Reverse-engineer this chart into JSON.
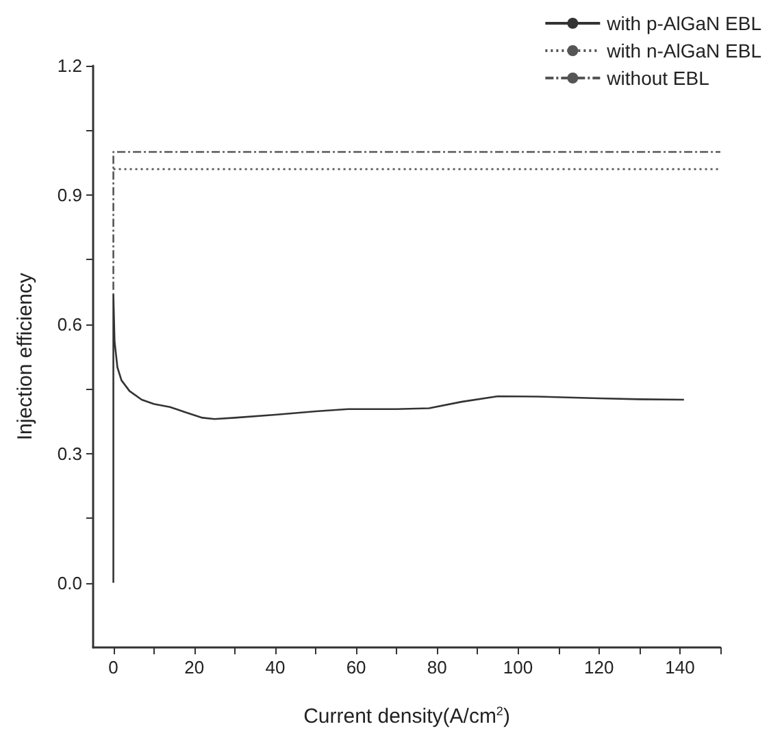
{
  "chart_data": {
    "type": "line",
    "xlabel": "Current density(A/cm$^{2}$)",
    "ylabel": "Injection efficiency",
    "xlim": [
      -5,
      150
    ],
    "xticks": [
      0,
      {
        "value": 10,
        "label": null
      },
      20,
      {
        "value": 30,
        "label": null
      },
      40,
      {
        "value": 50,
        "label": null
      },
      60,
      {
        "value": 70,
        "label": null
      },
      80,
      {
        "value": 90,
        "label": null
      },
      100,
      {
        "value": 110,
        "label": null
      },
      120,
      {
        "value": 130,
        "label": null
      },
      140,
      {
        "value": 150,
        "label": null
      }
    ],
    "ylim": [
      -0.15,
      1.2
    ],
    "yticks": [
      {
        "value": 0,
        "label": "0.0"
      },
      {
        "value": 0.15,
        "label": null
      },
      0.3,
      {
        "value": 0.45,
        "label": null
      },
      0.6,
      {
        "value": 0.75,
        "label": null
      },
      0.9,
      {
        "value": 1.05,
        "label": null
      },
      1.2
    ],
    "grid": false,
    "legend": "top right",
    "marker": "none",
    "series": [
      {
        "name": "with p-AlGaN EBL",
        "color": "#333333",
        "line_style": "solid",
        "x": [
          0,
          0,
          0.3,
          1,
          2,
          4,
          7,
          10,
          14,
          18,
          22,
          25,
          30,
          40,
          50,
          58,
          70,
          78,
          86,
          95,
          105,
          120,
          130,
          141
        ],
        "values": [
          0,
          0.67,
          0.56,
          0.5,
          0.47,
          0.445,
          0.425,
          0.415,
          0.408,
          0.395,
          0.383,
          0.38,
          0.383,
          0.39,
          0.398,
          0.403,
          0.403,
          0.405,
          0.42,
          0.433,
          0.432,
          0.428,
          0.426,
          0.425
        ]
      },
      {
        "name": "with n-AlGaN EBL",
        "color": "#555555",
        "line_style": "dotted",
        "x": [
          0,
          150
        ],
        "values": [
          0.96,
          0.96
        ]
      },
      {
        "name": "without EBL",
        "color": "#555555",
        "line_style": "dashdot",
        "x": [
          0,
          0,
          150
        ],
        "values": [
          0.68,
          1.0,
          1.0
        ]
      }
    ]
  }
}
